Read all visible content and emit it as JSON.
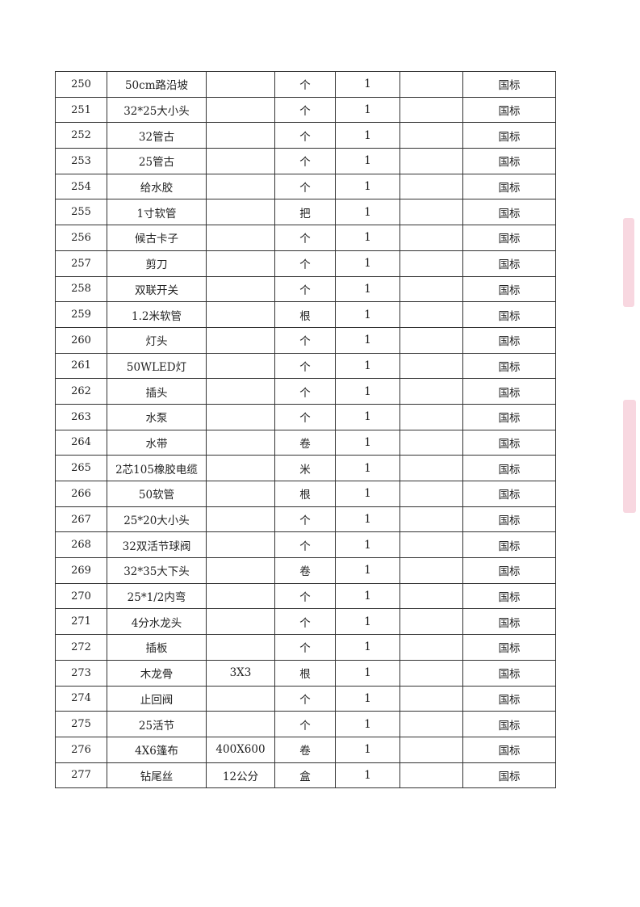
{
  "rows": [
    {
      "no": "250",
      "name": "50cm路沿坡",
      "spec": "",
      "unit": "个",
      "qty": "1",
      "blank": "",
      "standard": "国标"
    },
    {
      "no": "251",
      "name": "32*25大小头",
      "spec": "",
      "unit": "个",
      "qty": "1",
      "blank": "",
      "standard": "国标"
    },
    {
      "no": "252",
      "name": "32管古",
      "spec": "",
      "unit": "个",
      "qty": "1",
      "blank": "",
      "standard": "国标"
    },
    {
      "no": "253",
      "name": "25管古",
      "spec": "",
      "unit": "个",
      "qty": "1",
      "blank": "",
      "standard": "国标"
    },
    {
      "no": "254",
      "name": "给水胶",
      "spec": "",
      "unit": "个",
      "qty": "1",
      "blank": "",
      "standard": "国标"
    },
    {
      "no": "255",
      "name": "1寸软管",
      "spec": "",
      "unit": "把",
      "qty": "1",
      "blank": "",
      "standard": "国标"
    },
    {
      "no": "256",
      "name": "候古卡子",
      "spec": "",
      "unit": "个",
      "qty": "1",
      "blank": "",
      "standard": "国标"
    },
    {
      "no": "257",
      "name": "剪刀",
      "spec": "",
      "unit": "个",
      "qty": "1",
      "blank": "",
      "standard": "国标"
    },
    {
      "no": "258",
      "name": "双联开关",
      "spec": "",
      "unit": "个",
      "qty": "1",
      "blank": "",
      "standard": "国标"
    },
    {
      "no": "259",
      "name": "1.2米软管",
      "spec": "",
      "unit": "根",
      "qty": "1",
      "blank": "",
      "standard": "国标"
    },
    {
      "no": "260",
      "name": "灯头",
      "spec": "",
      "unit": "个",
      "qty": "1",
      "blank": "",
      "standard": "国标"
    },
    {
      "no": "261",
      "name": "50WLED灯",
      "spec": "",
      "unit": "个",
      "qty": "1",
      "blank": "",
      "standard": "国标"
    },
    {
      "no": "262",
      "name": "插头",
      "spec": "",
      "unit": "个",
      "qty": "1",
      "blank": "",
      "standard": "国标"
    },
    {
      "no": "263",
      "name": "水泵",
      "spec": "",
      "unit": "个",
      "qty": "1",
      "blank": "",
      "standard": "国标"
    },
    {
      "no": "264",
      "name": "水带",
      "spec": "",
      "unit": "卷",
      "qty": "1",
      "blank": "",
      "standard": "国标"
    },
    {
      "no": "265",
      "name": "2芯105橡胶电缆",
      "spec": "",
      "unit": "米",
      "qty": "1",
      "blank": "",
      "standard": "国标"
    },
    {
      "no": "266",
      "name": "50软管",
      "spec": "",
      "unit": "根",
      "qty": "1",
      "blank": "",
      "standard": "国标"
    },
    {
      "no": "267",
      "name": "25*20大小头",
      "spec": "",
      "unit": "个",
      "qty": "1",
      "blank": "",
      "standard": "国标"
    },
    {
      "no": "268",
      "name": "32双活节球阀",
      "spec": "",
      "unit": "个",
      "qty": "1",
      "blank": "",
      "standard": "国标"
    },
    {
      "no": "269",
      "name": "32*35大下头",
      "spec": "",
      "unit": "卷",
      "qty": "1",
      "blank": "",
      "standard": "国标"
    },
    {
      "no": "270",
      "name": "25*1/2内弯",
      "spec": "",
      "unit": "个",
      "qty": "1",
      "blank": "",
      "standard": "国标"
    },
    {
      "no": "271",
      "name": "4分水龙头",
      "spec": "",
      "unit": "个",
      "qty": "1",
      "blank": "",
      "standard": "国标"
    },
    {
      "no": "272",
      "name": "插板",
      "spec": "",
      "unit": "个",
      "qty": "1",
      "blank": "",
      "standard": "国标"
    },
    {
      "no": "273",
      "name": "木龙骨",
      "spec": "3X3",
      "unit": "根",
      "qty": "1",
      "blank": "",
      "standard": "国标"
    },
    {
      "no": "274",
      "name": "止回阀",
      "spec": "",
      "unit": "个",
      "qty": "1",
      "blank": "",
      "standard": "国标"
    },
    {
      "no": "275",
      "name": "25活节",
      "spec": "",
      "unit": "个",
      "qty": "1",
      "blank": "",
      "standard": "国标"
    },
    {
      "no": "276",
      "name": "4X6篷布",
      "spec": "400X600",
      "unit": "卷",
      "qty": "1",
      "blank": "",
      "standard": "国标"
    },
    {
      "no": "277",
      "name": "钻尾丝",
      "spec": "12公分",
      "unit": "盒",
      "qty": "1",
      "blank": "",
      "standard": "国标"
    }
  ]
}
